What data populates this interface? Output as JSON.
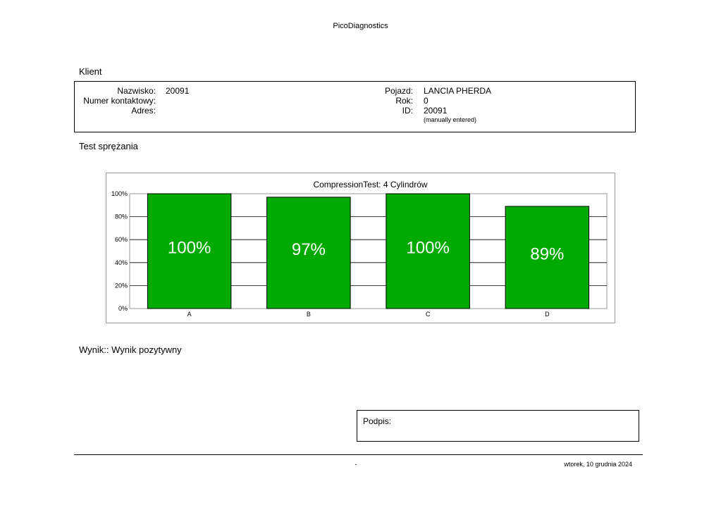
{
  "header": {
    "title": "PicoDiagnostics"
  },
  "client": {
    "heading": "Klient",
    "surname_label": "Nazwisko:",
    "surname_value": "20091",
    "contact_label": "Numer kontaktowy:",
    "contact_value": "",
    "address_label": "Adres:",
    "address_value": "",
    "vehicle_label": "Pojazd:",
    "vehicle_value": "LANCIA PHERDA",
    "year_label": "Rok:",
    "year_value": "0",
    "id_label": "ID:",
    "id_value": "20091",
    "id_note": "(manually entered)"
  },
  "test": {
    "heading": "Test sprężania"
  },
  "chart_data": {
    "type": "bar",
    "title": "CompressionTest: 4 Cylindrów",
    "categories": [
      "A",
      "B",
      "C",
      "D"
    ],
    "values": [
      100,
      97,
      100,
      89
    ],
    "value_labels": [
      "100%",
      "97%",
      "100%",
      "89%"
    ],
    "y_tick_labels": [
      "0%",
      "20%",
      "40%",
      "60%",
      "80%",
      "100%"
    ],
    "ylim": [
      0,
      100
    ],
    "xlabel": "",
    "ylabel": "",
    "grid": true,
    "bar_color": "#00aa00",
    "legend": "none"
  },
  "result": {
    "text": "Wynik:: Wynik pozytywny"
  },
  "signature": {
    "label": "Podpis:"
  },
  "footer": {
    "center": "-",
    "date": "wtorek, 10 grudnia 2024"
  }
}
